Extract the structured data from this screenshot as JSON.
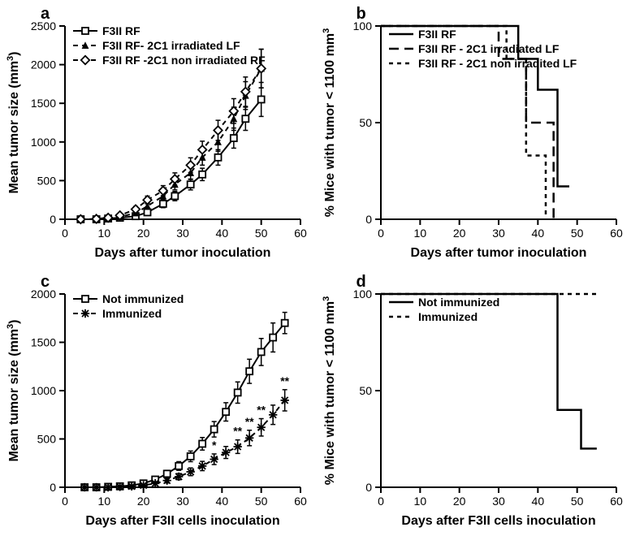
{
  "panel_labels": {
    "a": "a",
    "b": "b",
    "c": "c",
    "d": "d"
  },
  "typography": {
    "panel_label_fontsize": 20,
    "axis_title_fontsize": 16,
    "tick_fontsize": 14,
    "legend_fontsize": 14
  },
  "colors": {
    "background": "#ffffff",
    "axis": "#000000",
    "text": "#000000"
  },
  "panel_a": {
    "type": "line",
    "x_label": "Days after tumor inoculation",
    "y_label": "Mean tumor size (mm³)",
    "y_label_raw": "Mean tumor size (mm",
    "y_label_sup": "3",
    "y_label_close": ")",
    "xlim": [
      0,
      60
    ],
    "xtick_step": 10,
    "ylim": [
      0,
      2500
    ],
    "ytick_step": 500,
    "legend": [
      {
        "key": "s1",
        "text": "F3II RF",
        "marker": "open-square",
        "dash": "solid"
      },
      {
        "key": "s2",
        "text": "F3II RF- 2C1 irradiated LF",
        "marker": "filled-triangle",
        "dash": "dash"
      },
      {
        "key": "s3",
        "text": "F3II RF -2C1 non irradiated RF",
        "marker": "open-diamond",
        "dash": "dash"
      }
    ],
    "series": {
      "s1": {
        "marker": "open-square",
        "dash": "solid",
        "color": "#000000",
        "points": [
          {
            "x": 4,
            "y": 0,
            "eu": 0,
            "el": 0
          },
          {
            "x": 8,
            "y": 0,
            "eu": 0,
            "el": 0
          },
          {
            "x": 11,
            "y": 10,
            "eu": 10,
            "el": 10
          },
          {
            "x": 14,
            "y": 20,
            "eu": 15,
            "el": 15
          },
          {
            "x": 18,
            "y": 40,
            "eu": 20,
            "el": 20
          },
          {
            "x": 21,
            "y": 90,
            "eu": 30,
            "el": 30
          },
          {
            "x": 25,
            "y": 200,
            "eu": 50,
            "el": 50
          },
          {
            "x": 28,
            "y": 300,
            "eu": 60,
            "el": 60
          },
          {
            "x": 32,
            "y": 450,
            "eu": 70,
            "el": 70
          },
          {
            "x": 35,
            "y": 580,
            "eu": 80,
            "el": 80
          },
          {
            "x": 39,
            "y": 800,
            "eu": 100,
            "el": 100
          },
          {
            "x": 43,
            "y": 1050,
            "eu": 130,
            "el": 130
          },
          {
            "x": 46,
            "y": 1300,
            "eu": 150,
            "el": 150
          },
          {
            "x": 50,
            "y": 1550,
            "eu": 220,
            "el": 220
          }
        ]
      },
      "s2": {
        "marker": "filled-triangle",
        "dash": "dash",
        "color": "#000000",
        "points": [
          {
            "x": 4,
            "y": 0,
            "eu": 0,
            "el": 0
          },
          {
            "x": 8,
            "y": 0,
            "eu": 0,
            "el": 0
          },
          {
            "x": 11,
            "y": 15,
            "eu": 10,
            "el": 10
          },
          {
            "x": 14,
            "y": 30,
            "eu": 15,
            "el": 15
          },
          {
            "x": 18,
            "y": 80,
            "eu": 25,
            "el": 25
          },
          {
            "x": 21,
            "y": 170,
            "eu": 40,
            "el": 40
          },
          {
            "x": 25,
            "y": 300,
            "eu": 55,
            "el": 55
          },
          {
            "x": 28,
            "y": 450,
            "eu": 70,
            "el": 70
          },
          {
            "x": 32,
            "y": 600,
            "eu": 85,
            "el": 85
          },
          {
            "x": 35,
            "y": 800,
            "eu": 100,
            "el": 100
          },
          {
            "x": 39,
            "y": 1000,
            "eu": 120,
            "el": 120
          },
          {
            "x": 43,
            "y": 1300,
            "eu": 150,
            "el": 150
          },
          {
            "x": 46,
            "y": 1600,
            "eu": 180,
            "el": 180
          },
          {
            "x": 50,
            "y": 1950,
            "eu": 250,
            "el": 250
          }
        ]
      },
      "s3": {
        "marker": "open-diamond",
        "dash": "dash",
        "color": "#000000",
        "points": [
          {
            "x": 4,
            "y": 0,
            "eu": 0,
            "el": 0
          },
          {
            "x": 8,
            "y": 5,
            "eu": 5,
            "el": 5
          },
          {
            "x": 11,
            "y": 20,
            "eu": 12,
            "el": 12
          },
          {
            "x": 14,
            "y": 50,
            "eu": 20,
            "el": 20
          },
          {
            "x": 18,
            "y": 130,
            "eu": 35,
            "el": 35
          },
          {
            "x": 21,
            "y": 250,
            "eu": 50,
            "el": 50
          },
          {
            "x": 25,
            "y": 370,
            "eu": 65,
            "el": 65
          },
          {
            "x": 28,
            "y": 520,
            "eu": 80,
            "el": 80
          },
          {
            "x": 32,
            "y": 700,
            "eu": 95,
            "el": 95
          },
          {
            "x": 35,
            "y": 900,
            "eu": 110,
            "el": 110
          },
          {
            "x": 39,
            "y": 1150,
            "eu": 130,
            "el": 130
          },
          {
            "x": 43,
            "y": 1400,
            "eu": 160,
            "el": 160
          },
          {
            "x": 46,
            "y": 1650,
            "eu": 190,
            "el": 190
          },
          {
            "x": 50,
            "y": 1950,
            "eu": 250,
            "el": 250
          }
        ]
      }
    }
  },
  "panel_b": {
    "type": "step-survival",
    "x_label": "Days after tumor inoculation",
    "y_label_raw": "% Mice with tumor < 1100 mm",
    "y_label_sup": "3",
    "xlim": [
      0,
      60
    ],
    "xtick_step": 10,
    "ylim": [
      0,
      100
    ],
    "ytick_step": 50,
    "yticks": [
      0,
      50,
      100
    ],
    "legend": [
      {
        "key": "s1",
        "text": "F3II RF",
        "dash": "solid"
      },
      {
        "key": "s2",
        "text": "F3II RF - 2C1 irradiated LF",
        "dash": "longdash"
      },
      {
        "key": "s3",
        "text": "F3II RF - 2C1 non irradited LF",
        "dash": "shortdash"
      }
    ],
    "series": {
      "s1": {
        "dash": "solid",
        "color": "#000000",
        "steps": [
          {
            "x": 0,
            "y": 100
          },
          {
            "x": 35,
            "y": 100
          },
          {
            "x": 35,
            "y": 83
          },
          {
            "x": 40,
            "y": 83
          },
          {
            "x": 40,
            "y": 67
          },
          {
            "x": 45,
            "y": 67
          },
          {
            "x": 45,
            "y": 17
          },
          {
            "x": 48,
            "y": 17
          }
        ]
      },
      "s2": {
        "dash": "longdash",
        "color": "#000000",
        "steps": [
          {
            "x": 0,
            "y": 100
          },
          {
            "x": 30,
            "y": 100
          },
          {
            "x": 30,
            "y": 83
          },
          {
            "x": 37,
            "y": 83
          },
          {
            "x": 37,
            "y": 50
          },
          {
            "x": 44,
            "y": 50
          },
          {
            "x": 44,
            "y": 0
          }
        ]
      },
      "s3": {
        "dash": "shortdash",
        "color": "#000000",
        "steps": [
          {
            "x": 0,
            "y": 100
          },
          {
            "x": 32,
            "y": 100
          },
          {
            "x": 32,
            "y": 83
          },
          {
            "x": 37,
            "y": 83
          },
          {
            "x": 37,
            "y": 33
          },
          {
            "x": 42,
            "y": 33
          },
          {
            "x": 42,
            "y": 0
          }
        ]
      }
    }
  },
  "panel_c": {
    "type": "line",
    "x_label": "Days after F3II cells inoculation",
    "y_label_raw": "Mean tumor size (mm",
    "y_label_sup": "3",
    "y_label_close": ")",
    "xlim": [
      0,
      60
    ],
    "xtick_step": 10,
    "ylim": [
      0,
      2000
    ],
    "ytick_step": 500,
    "legend": [
      {
        "key": "s1",
        "text": "Not immunized",
        "marker": "open-square",
        "dash": "solid"
      },
      {
        "key": "s2",
        "text": "Immunized",
        "marker": "asterisk",
        "dash": "dash"
      }
    ],
    "series": {
      "s1": {
        "marker": "open-square",
        "dash": "solid",
        "color": "#000000",
        "points": [
          {
            "x": 5,
            "y": 0,
            "eu": 0,
            "el": 0
          },
          {
            "x": 8,
            "y": 0,
            "eu": 0,
            "el": 0
          },
          {
            "x": 11,
            "y": 5,
            "eu": 5,
            "el": 5
          },
          {
            "x": 14,
            "y": 10,
            "eu": 8,
            "el": 8
          },
          {
            "x": 17,
            "y": 20,
            "eu": 12,
            "el": 12
          },
          {
            "x": 20,
            "y": 40,
            "eu": 18,
            "el": 18
          },
          {
            "x": 23,
            "y": 80,
            "eu": 25,
            "el": 25
          },
          {
            "x": 26,
            "y": 140,
            "eu": 35,
            "el": 35
          },
          {
            "x": 29,
            "y": 220,
            "eu": 45,
            "el": 45
          },
          {
            "x": 32,
            "y": 320,
            "eu": 55,
            "el": 55
          },
          {
            "x": 35,
            "y": 450,
            "eu": 65,
            "el": 65
          },
          {
            "x": 38,
            "y": 600,
            "eu": 80,
            "el": 80
          },
          {
            "x": 41,
            "y": 780,
            "eu": 95,
            "el": 95
          },
          {
            "x": 44,
            "y": 980,
            "eu": 110,
            "el": 110
          },
          {
            "x": 47,
            "y": 1200,
            "eu": 125,
            "el": 125
          },
          {
            "x": 50,
            "y": 1400,
            "eu": 140,
            "el": 140
          },
          {
            "x": 53,
            "y": 1550,
            "eu": 150,
            "el": 150
          },
          {
            "x": 56,
            "y": 1700,
            "eu": 110,
            "el": 110
          }
        ]
      },
      "s2": {
        "marker": "asterisk",
        "dash": "dash",
        "color": "#000000",
        "points": [
          {
            "x": 5,
            "y": 0,
            "eu": 0,
            "el": 0
          },
          {
            "x": 8,
            "y": 0,
            "eu": 0,
            "el": 0
          },
          {
            "x": 11,
            "y": 0,
            "eu": 0,
            "el": 0
          },
          {
            "x": 14,
            "y": 5,
            "eu": 5,
            "el": 5
          },
          {
            "x": 17,
            "y": 10,
            "eu": 8,
            "el": 8
          },
          {
            "x": 20,
            "y": 20,
            "eu": 12,
            "el": 12
          },
          {
            "x": 23,
            "y": 40,
            "eu": 18,
            "el": 18
          },
          {
            "x": 26,
            "y": 70,
            "eu": 25,
            "el": 25
          },
          {
            "x": 29,
            "y": 110,
            "eu": 32,
            "el": 32
          },
          {
            "x": 32,
            "y": 160,
            "eu": 40,
            "el": 40
          },
          {
            "x": 35,
            "y": 220,
            "eu": 48,
            "el": 48
          },
          {
            "x": 38,
            "y": 290,
            "eu": 55,
            "el": 55,
            "sig": "*"
          },
          {
            "x": 41,
            "y": 360,
            "eu": 62,
            "el": 62
          },
          {
            "x": 44,
            "y": 420,
            "eu": 70,
            "el": 70,
            "sig": "**"
          },
          {
            "x": 47,
            "y": 510,
            "eu": 80,
            "el": 80,
            "sig": "**"
          },
          {
            "x": 50,
            "y": 620,
            "eu": 90,
            "el": 90,
            "sig": "**"
          },
          {
            "x": 53,
            "y": 750,
            "eu": 100,
            "el": 100
          },
          {
            "x": 56,
            "y": 900,
            "eu": 110,
            "el": 110,
            "sig": "**"
          }
        ]
      }
    }
  },
  "panel_d": {
    "type": "step-survival",
    "x_label": "Days after F3II cells inoculation",
    "y_label_raw": "% Mice with tumor < 1100 mm",
    "y_label_sup": "3",
    "xlim": [
      0,
      60
    ],
    "xtick_step": 10,
    "ylim": [
      0,
      100
    ],
    "ytick_step": 50,
    "yticks": [
      0,
      50,
      100
    ],
    "legend": [
      {
        "key": "s1",
        "text": "Not immunized",
        "dash": "solid"
      },
      {
        "key": "s2",
        "text": "Immunized",
        "dash": "shortdash"
      }
    ],
    "series": {
      "s1": {
        "dash": "solid",
        "color": "#000000",
        "steps": [
          {
            "x": 0,
            "y": 100
          },
          {
            "x": 45,
            "y": 100
          },
          {
            "x": 45,
            "y": 40
          },
          {
            "x": 51,
            "y": 40
          },
          {
            "x": 51,
            "y": 20
          },
          {
            "x": 55,
            "y": 20
          }
        ]
      },
      "s2": {
        "dash": "shortdash",
        "color": "#000000",
        "steps": [
          {
            "x": 0,
            "y": 100
          },
          {
            "x": 55,
            "y": 100
          }
        ]
      }
    }
  }
}
